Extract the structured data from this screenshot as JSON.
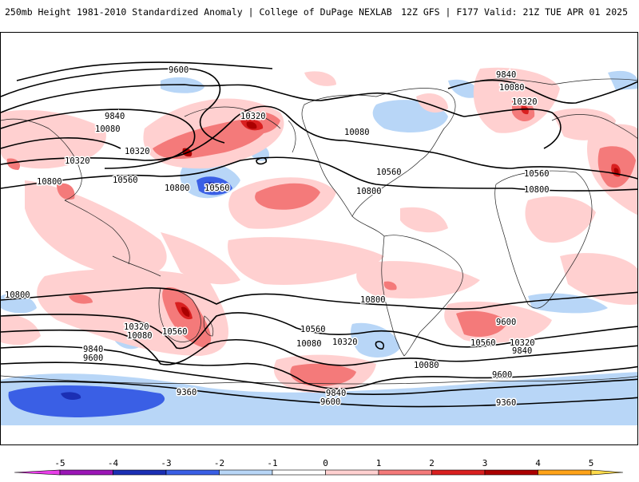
{
  "header": {
    "title_left": "250mb Height 1981-2010 Standardized Anomaly | College of DuPage NEXLAB",
    "title_right": "12Z GFS | F177 Valid: 21Z TUE APR 01 2025"
  },
  "contours": {
    "labels": [
      "9600",
      "9840",
      "10080",
      "10320",
      "10560",
      "10800",
      "10320",
      "10560",
      "10800",
      "10080",
      "10320",
      "10560",
      "10800",
      "10080",
      "10320",
      "10560",
      "10800",
      "10560",
      "10320",
      "10080",
      "9840",
      "9600",
      "9360",
      "10800",
      "10080",
      "9600",
      "9840",
      "10320",
      "10560",
      "9840",
      "9600",
      "9360",
      "10080",
      "10320",
      "10560",
      "9840",
      "10800",
      "9600"
    ],
    "color": "#000000"
  },
  "colorbar": {
    "ticks": [
      "-5",
      "-4",
      "-3",
      "-2",
      "-1",
      "0",
      "1",
      "2",
      "3",
      "4",
      "5"
    ],
    "colors": [
      "#e83ee8",
      "#9b16b6",
      "#1b2fb4",
      "#3a5fe5",
      "#b8d6f7",
      "#ffffff",
      "#ffd0d0",
      "#f47a7a",
      "#d92020",
      "#ab0000",
      "#ffa319",
      "#ffdb4c"
    ]
  }
}
